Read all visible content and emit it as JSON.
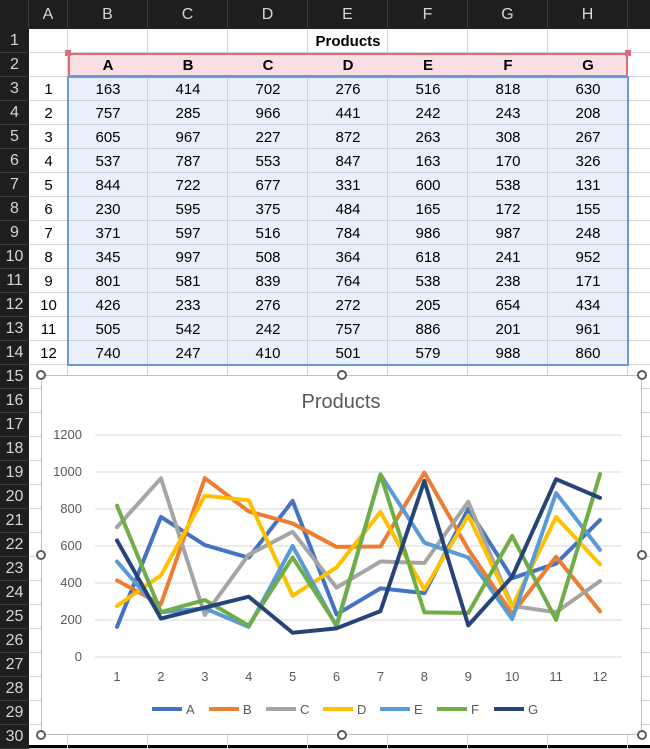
{
  "columns": [
    "A",
    "B",
    "C",
    "D",
    "E",
    "F",
    "G",
    "H"
  ],
  "rows": [
    "1",
    "2",
    "3",
    "4",
    "5",
    "6",
    "7",
    "8",
    "9",
    "10",
    "11",
    "12",
    "13",
    "14",
    "15",
    "16",
    "17",
    "18",
    "19",
    "20",
    "21",
    "22",
    "23",
    "24",
    "25",
    "26",
    "27",
    "28",
    "29",
    "30"
  ],
  "table": {
    "title": "Products",
    "headers": [
      "A",
      "B",
      "C",
      "D",
      "E",
      "F",
      "G"
    ],
    "index": [
      "1",
      "2",
      "3",
      "4",
      "5",
      "6",
      "7",
      "8",
      "9",
      "10",
      "11",
      "12"
    ],
    "values": [
      [
        163,
        414,
        702,
        276,
        516,
        818,
        630
      ],
      [
        757,
        285,
        966,
        441,
        242,
        243,
        208
      ],
      [
        605,
        967,
        227,
        872,
        263,
        308,
        267
      ],
      [
        537,
        787,
        553,
        847,
        163,
        170,
        326
      ],
      [
        844,
        722,
        677,
        331,
        600,
        538,
        131
      ],
      [
        230,
        595,
        375,
        484,
        165,
        172,
        155
      ],
      [
        371,
        597,
        516,
        784,
        986,
        987,
        248
      ],
      [
        345,
        997,
        508,
        364,
        618,
        241,
        952
      ],
      [
        801,
        581,
        839,
        764,
        538,
        238,
        171
      ],
      [
        426,
        233,
        276,
        272,
        205,
        654,
        434
      ],
      [
        505,
        542,
        242,
        757,
        886,
        201,
        961
      ],
      [
        740,
        247,
        410,
        501,
        579,
        988,
        860
      ]
    ]
  },
  "chart_data": {
    "type": "line",
    "title": "Products",
    "x": [
      1,
      2,
      3,
      4,
      5,
      6,
      7,
      8,
      9,
      10,
      11,
      12
    ],
    "ylim": [
      0,
      1200
    ],
    "yticks": [
      0,
      200,
      400,
      600,
      800,
      1000,
      1200
    ],
    "grid": true,
    "legend": "bottom",
    "series": [
      {
        "name": "A",
        "color": "#4472c4",
        "values": [
          163,
          757,
          605,
          537,
          844,
          230,
          371,
          345,
          801,
          426,
          505,
          740
        ]
      },
      {
        "name": "B",
        "color": "#ed7d31",
        "values": [
          414,
          285,
          967,
          787,
          722,
          595,
          597,
          997,
          581,
          233,
          542,
          247
        ]
      },
      {
        "name": "C",
        "color": "#a5a5a5",
        "values": [
          702,
          966,
          227,
          553,
          677,
          375,
          516,
          508,
          839,
          276,
          242,
          410
        ]
      },
      {
        "name": "D",
        "color": "#ffc000",
        "values": [
          276,
          441,
          872,
          847,
          331,
          484,
          784,
          364,
          764,
          272,
          757,
          501
        ]
      },
      {
        "name": "E",
        "color": "#5b9bd5",
        "values": [
          516,
          242,
          263,
          163,
          600,
          165,
          986,
          618,
          538,
          205,
          886,
          579
        ]
      },
      {
        "name": "F",
        "color": "#70ad47",
        "values": [
          818,
          243,
          308,
          170,
          538,
          172,
          987,
          241,
          238,
          654,
          201,
          988
        ]
      },
      {
        "name": "G",
        "color": "#264478",
        "values": [
          630,
          208,
          267,
          326,
          131,
          155,
          248,
          952,
          171,
          434,
          961,
          860
        ]
      }
    ]
  }
}
